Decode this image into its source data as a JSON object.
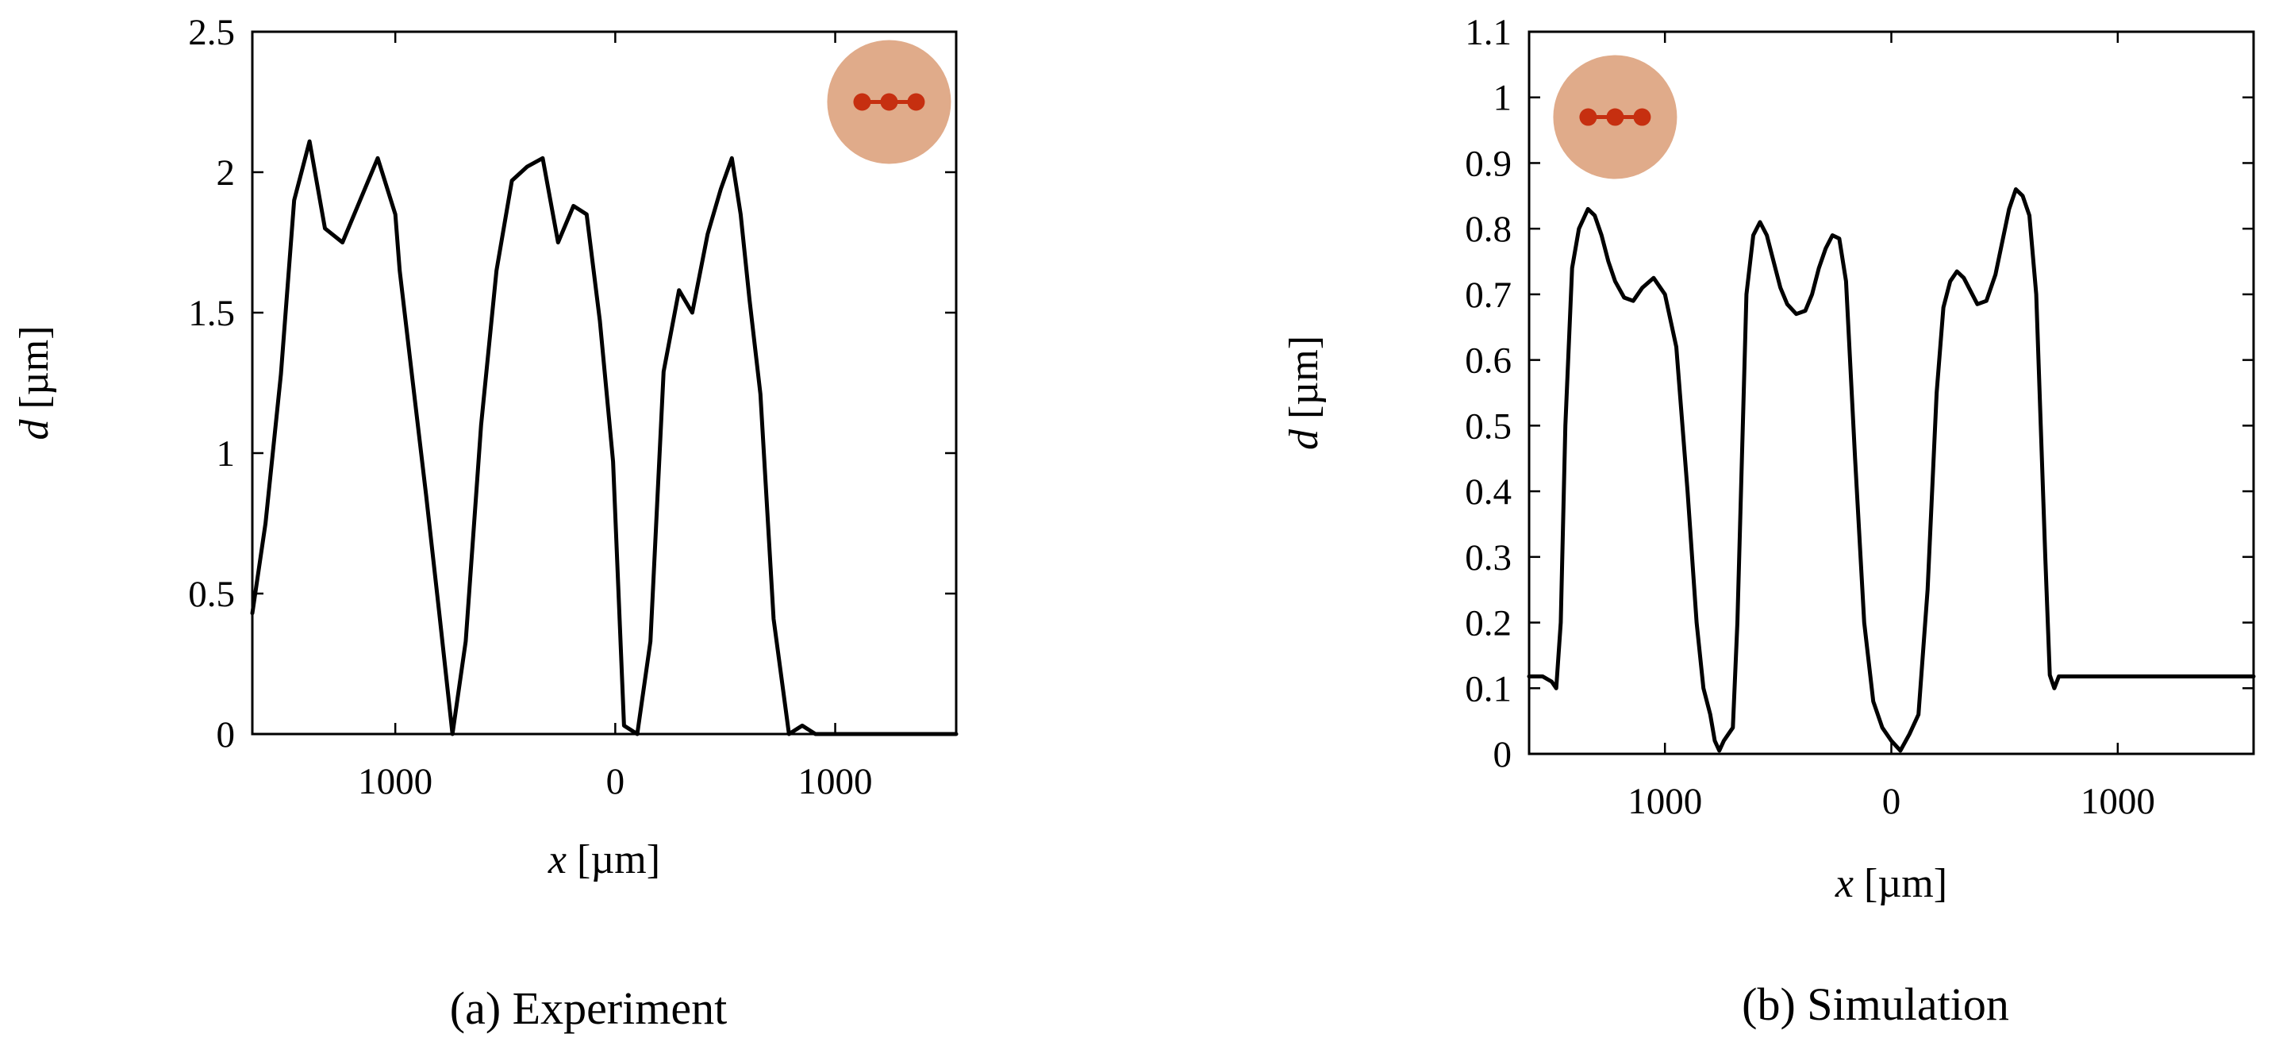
{
  "colors": {
    "line": "#000000",
    "axes": "#000000",
    "inset_disc": "#e0ab8a",
    "inset_dots": "#c62f10"
  },
  "inset_icon": "three-dots-in-disc-icon",
  "chart_data": [
    {
      "type": "line",
      "caption": "(a) Experiment",
      "xlabel_var": "x",
      "xlabel_unit": " [µm]",
      "ylabel_var": "d",
      "ylabel_unit": " [µm]",
      "xlim": [
        -1650,
        1550
      ],
      "ylim": [
        0,
        2.5
      ],
      "xticks": [
        {
          "value": -1000,
          "label": "1000"
        },
        {
          "value": 0,
          "label": "0"
        },
        {
          "value": 1000,
          "label": "1000"
        }
      ],
      "yticks": [
        {
          "value": 0,
          "label": "0"
        },
        {
          "value": 0.5,
          "label": "0.5"
        },
        {
          "value": 1,
          "label": "1"
        },
        {
          "value": 1.5,
          "label": "1.5"
        },
        {
          "value": 2,
          "label": "2"
        },
        {
          "value": 2.5,
          "label": "2.5"
        }
      ],
      "grid": false,
      "inset": {
        "x": 1245,
        "y": 2.25
      },
      "series": [
        {
          "name": "Experiment",
          "x": [
            -1650,
            -1590,
            -1520,
            -1460,
            -1390,
            -1320,
            -1240,
            -1160,
            -1080,
            -1000,
            -980,
            -920,
            -860,
            -800,
            -740,
            -680,
            -610,
            -540,
            -470,
            -400,
            -330,
            -260,
            -190,
            -130,
            -70,
            -10,
            40,
            100,
            160,
            220,
            290,
            350,
            420,
            480,
            530,
            570,
            610,
            660,
            720,
            790,
            850,
            910,
            970,
            1040,
            1100,
            1140,
            1180,
            1210,
            1230,
            1260,
            1290,
            1340,
            1380,
            1440,
            1510,
            1550
          ],
          "y": [
            0.43,
            0.75,
            1.28,
            1.9,
            2.11,
            1.8,
            1.75,
            1.9,
            2.05,
            1.85,
            1.65,
            1.25,
            0.85,
            0.43,
            0,
            0.33,
            1.1,
            1.65,
            1.97,
            2.02,
            2.05,
            1.75,
            1.88,
            1.85,
            1.47,
            0.97,
            0.03,
            0,
            0.33,
            1.29,
            1.58,
            1.5,
            1.78,
            1.94,
            2.05,
            1.85,
            1.55,
            1.21,
            0.41,
            0,
            0.03,
            0,
            0,
            0,
            0,
            0,
            0,
            0,
            0,
            0,
            0,
            0,
            0,
            0,
            0,
            0
          ]
        }
      ]
    },
    {
      "type": "line",
      "caption": "(b) Simulation",
      "xlabel_var": "x",
      "xlabel_unit": " [µm]",
      "ylabel_var": "d",
      "ylabel_unit": " [µm]",
      "xlim": [
        -1600,
        1600
      ],
      "ylim": [
        0,
        1.1
      ],
      "xticks": [
        {
          "value": -1000,
          "label": "1000"
        },
        {
          "value": 0,
          "label": "0"
        },
        {
          "value": 1000,
          "label": "1000"
        }
      ],
      "yticks": [
        {
          "value": 0,
          "label": "0"
        },
        {
          "value": 0.1,
          "label": "0.1"
        },
        {
          "value": 0.2,
          "label": "0.2"
        },
        {
          "value": 0.3,
          "label": "0.3"
        },
        {
          "value": 0.4,
          "label": "0.4"
        },
        {
          "value": 0.5,
          "label": "0.5"
        },
        {
          "value": 0.6,
          "label": "0.6"
        },
        {
          "value": 0.7,
          "label": "0.7"
        },
        {
          "value": 0.8,
          "label": "0.8"
        },
        {
          "value": 0.9,
          "label": "0.9"
        },
        {
          "value": 1,
          "label": "1"
        },
        {
          "value": 1.1,
          "label": "1.1"
        }
      ],
      "grid": false,
      "inset": {
        "x": -1220,
        "y": 0.97
      },
      "series": [
        {
          "name": "Simulation",
          "x": [
            -1600,
            -1540,
            -1500,
            -1480,
            -1460,
            -1440,
            -1410,
            -1380,
            -1340,
            -1310,
            -1280,
            -1250,
            -1220,
            -1180,
            -1140,
            -1100,
            -1050,
            -1000,
            -950,
            -900,
            -860,
            -830,
            -800,
            -780,
            -760,
            -740,
            -720,
            -700,
            -680,
            -660,
            -640,
            -610,
            -580,
            -550,
            -520,
            -490,
            -460,
            -420,
            -380,
            -350,
            -320,
            -290,
            -260,
            -230,
            -200,
            -160,
            -120,
            -80,
            -40,
            0,
            40,
            80,
            120,
            160,
            200,
            230,
            260,
            290,
            320,
            350,
            380,
            420,
            460,
            490,
            520,
            550,
            580,
            610,
            640,
            660,
            680,
            700,
            720,
            740,
            760,
            780,
            800,
            830,
            860,
            900,
            950,
            1000,
            1050,
            1100,
            1140,
            1180,
            1220,
            1250,
            1280,
            1310,
            1340,
            1380,
            1410,
            1440,
            1460,
            1480,
            1500,
            1540,
            1600
          ],
          "y": [
            0.118,
            0.118,
            0.11,
            0.1,
            0.2,
            0.5,
            0.74,
            0.8,
            0.83,
            0.82,
            0.79,
            0.75,
            0.72,
            0.695,
            0.69,
            0.71,
            0.725,
            0.7,
            0.62,
            0.4,
            0.2,
            0.1,
            0.06,
            0.02,
            0.005,
            0.02,
            0.03,
            0.04,
            0.2,
            0.45,
            0.7,
            0.79,
            0.81,
            0.79,
            0.75,
            0.71,
            0.685,
            0.67,
            0.675,
            0.7,
            0.74,
            0.77,
            0.79,
            0.785,
            0.72,
            0.45,
            0.2,
            0.08,
            0.04,
            0.02,
            0.005,
            0.03,
            0.06,
            0.25,
            0.55,
            0.68,
            0.72,
            0.735,
            0.725,
            0.705,
            0.685,
            0.69,
            0.73,
            0.78,
            0.83,
            0.86,
            0.85,
            0.82,
            0.7,
            0.5,
            0.3,
            0.12,
            0.1,
            0.118,
            0.118,
            0.118,
            0.118,
            0.118,
            0.118,
            0.118,
            0.118,
            0.118,
            0.118,
            0.118,
            0.118,
            0.118,
            0.118,
            0.118,
            0.118,
            0.118,
            0.118,
            0.118,
            0.118,
            0.118,
            0.118,
            0.118,
            0.118,
            0.118,
            0.118
          ]
        }
      ]
    }
  ]
}
